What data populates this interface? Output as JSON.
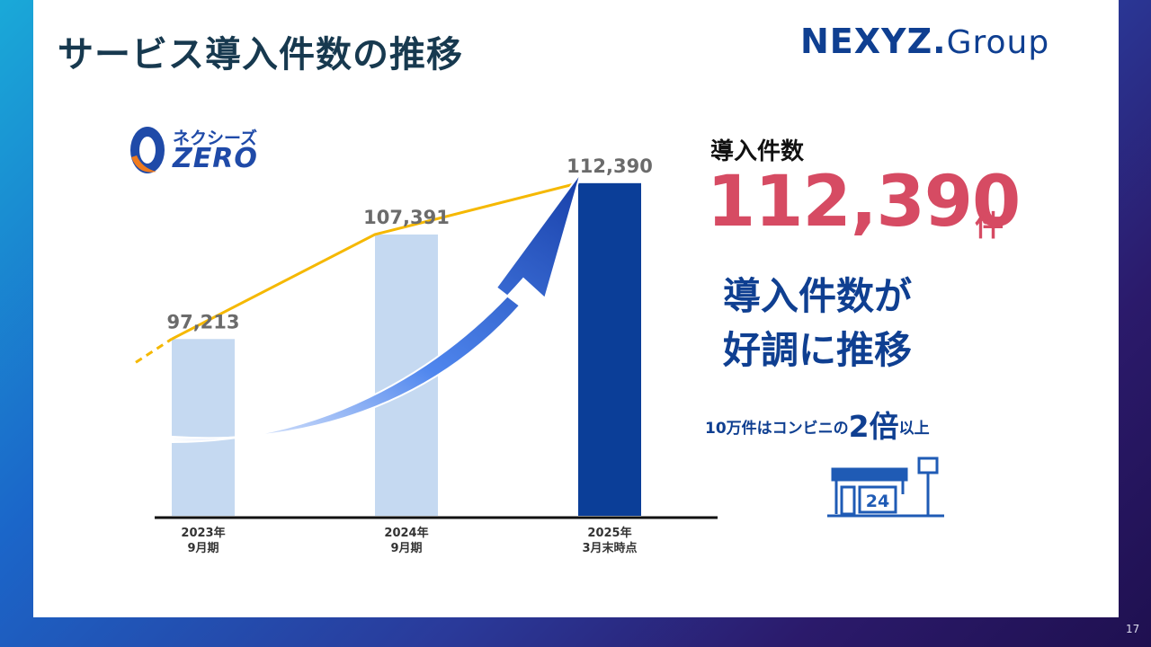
{
  "slide": {
    "title": "サービス導入件数の推移",
    "brand": {
      "main": "NEXYZ.",
      "sub": "Group"
    },
    "product_logo": {
      "kana": "ネクシーズ",
      "name": "ZERO"
    },
    "page_number": "17"
  },
  "kpi": {
    "label": "導入件数",
    "value": "112,390",
    "unit": "件",
    "headline_line1": "導入件数が",
    "headline_line2": "好調に推移",
    "note_pre": "10万件はコンビニの",
    "note_big": "2倍",
    "note_post": "以上",
    "icon_text": "24"
  },
  "chart_data": {
    "type": "bar",
    "categories": [
      [
        "2023年",
        "9月期"
      ],
      [
        "2024年",
        "9月期"
      ],
      [
        "2025年",
        "3月末時点"
      ]
    ],
    "values": [
      97213,
      107391,
      112390
    ],
    "data_labels": [
      "97,213",
      "107,391",
      "112,390"
    ],
    "colors": {
      "bar_past": "#c5d9f1",
      "bar_current": "#0b3e98",
      "trend_line": "#f5b800",
      "arrow": "#2b63d9"
    },
    "trend_line": true,
    "ylim": [
      80000,
      115000
    ]
  }
}
